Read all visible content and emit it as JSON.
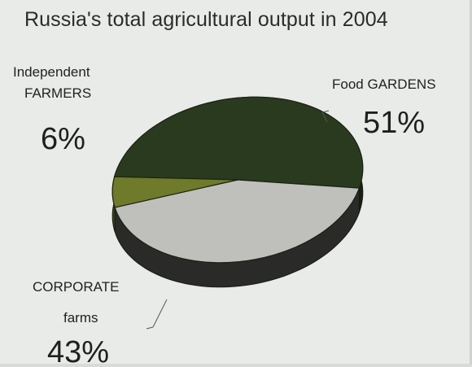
{
  "chart_data": {
    "type": "pie",
    "title": "Russia's total agricultural output in 2004",
    "slices": [
      {
        "label_line1": "Food GARDENS",
        "label_line2": "",
        "value": 51,
        "value_label": "51%",
        "color": "#2a3a1f"
      },
      {
        "label_line1": "CORPORATE",
        "label_line2": "farms",
        "value": 43,
        "value_label": "43%",
        "color": "#bfc0bc"
      },
      {
        "label_line1": "Independent",
        "label_line2": "FARMERS",
        "value": 6,
        "value_label": "6%",
        "color": "#6f7a2a"
      }
    ],
    "style": "3d-pie",
    "legend": "none"
  }
}
